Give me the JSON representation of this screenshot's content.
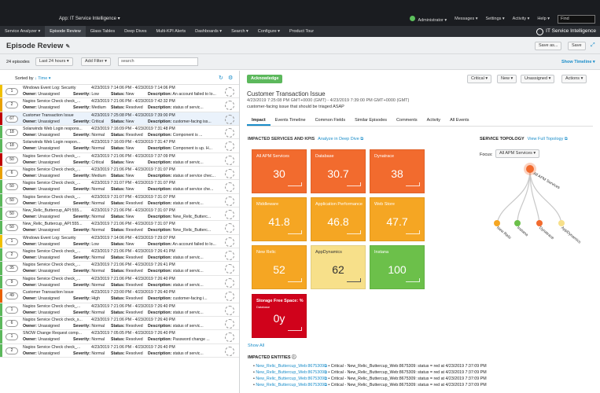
{
  "topbar": {
    "app": "App: IT Service Intelligence ▾",
    "user": "Administrator ▾",
    "messages": "Messages ▾",
    "settings": "Settings ▾",
    "activity": "Activity ▾",
    "help": "Help ▾",
    "find_placeholder": "Find"
  },
  "nav": {
    "items": [
      "Service Analyzer ▾",
      "Episode Review",
      "Glass Tables",
      "Deep Dives",
      "Multi-KPI Alerts",
      "Dashboards ▾",
      "Search ▾",
      "Configure ▾",
      "Product Tour"
    ],
    "brand": "IT Service Intelligence"
  },
  "page": {
    "title": "Episode Review",
    "save_as": "Save as...",
    "save": "Save"
  },
  "filters": {
    "count": "24 episodes",
    "time": "Last 24 hours ▾",
    "add_filter": "Add Filter ▾",
    "search": "search",
    "show_timeline": "Show Timeline ▾"
  },
  "list": {
    "sorted_by": "Sorted by ",
    "sort_field": "↓ Time ▾",
    "labels": {
      "owner": "Owner:",
      "severity": "Severity:",
      "status": "Status:",
      "description": "Description:"
    },
    "rows": [
      {
        "count": "1",
        "title": "Windows Event Log: Security",
        "time": "4/23/2019 7:14:06 PM - 4/23/2019 7:14:06 PM",
        "owner": "Unassigned",
        "severity": "Low",
        "status": "New",
        "desc": "An account failed to lo...",
        "color": "#f0c000"
      },
      {
        "count": "2",
        "title": "Nagios Service Check check_...",
        "time": "4/23/2019 7:21:06 PM - 4/23/2019 7:42:32 PM",
        "owner": "Unassigned",
        "severity": "Medium",
        "status": "Resolved",
        "desc": "status of servic...",
        "color": "#e8a000"
      },
      {
        "count": "67",
        "title": "Customer Transaction Issue",
        "time": "4/23/2019 7:25:08 PM - 4/23/2019 7:39:00 PM",
        "owner": "Unassigned",
        "severity": "Critical",
        "status": "New",
        "desc": "customer-facing iss...",
        "color": "#c00000",
        "selected": true
      },
      {
        "count": "18",
        "title": "Solarwinds Web Login respons...",
        "time": "4/23/2019 7:16:09 PM - 4/23/2019 7:31:48 PM",
        "owner": "Unassigned",
        "severity": "Normal",
        "status": "Resolved",
        "desc": "Component is ...",
        "color": "#5cb85c"
      },
      {
        "count": "18",
        "title": "Solarwinds Web Login respon...",
        "time": "4/23/2019 7:16:09 PM - 4/23/2019 7:31:47 PM",
        "owner": "Unassigned",
        "severity": "Normal",
        "status": "New",
        "desc": "Component is up. H...",
        "color": "#5cb85c"
      },
      {
        "count": "50",
        "title": "Nagios Service Check check_...",
        "time": "4/23/2019 7:21:06 PM - 4/23/2019 7:37:09 PM",
        "owner": "Unassigned",
        "severity": "Critical",
        "status": "New",
        "desc": "status of servic...",
        "color": "#c00000"
      },
      {
        "count": "6",
        "title": "Nagios Service Check check_...",
        "time": "4/23/2019 7:21:06 PM - 4/23/2019 7:31:07 PM",
        "owner": "Unassigned",
        "severity": "Medium",
        "status": "New",
        "desc": "status of service chec...",
        "color": "#e8a000"
      },
      {
        "count": "50",
        "title": "Nagios Service Check check_...",
        "time": "4/23/2019 7:31:07 PM - 4/23/2019 7:31:07 PM",
        "owner": "Unassigned",
        "severity": "Normal",
        "status": "New",
        "desc": "status of service che...",
        "color": "#5cb85c"
      },
      {
        "count": "50",
        "title": "Nagios Service Check check_...",
        "time": "4/23/2019 7:31:07 PM - 4/23/2019 7:31:07 PM",
        "owner": "Unassigned",
        "severity": "Normal",
        "status": "Resolved",
        "desc": "status of servic...",
        "color": "#5cb85c"
      },
      {
        "count": "50",
        "title": "New_Relic_Buttercup_API:555...",
        "time": "4/23/2019 7:21:06 PM - 4/23/2019 7:31:07 PM",
        "owner": "Unassigned",
        "severity": "Normal",
        "status": "New",
        "desc": "New_Relic_Butterc...",
        "color": "#5cb85c"
      },
      {
        "count": "50",
        "title": "New_Relic_Buttercup_API:555...",
        "time": "4/23/2019 7:21:06 PM - 4/23/2019 7:31:07 PM",
        "owner": "Unassigned",
        "severity": "Normal",
        "status": "Resolved",
        "desc": "New_Relic_Butterc...",
        "color": "#5cb85c"
      },
      {
        "count": "1",
        "title": "Windows Event Log: Security",
        "time": "4/23/2019 7:14:06 PM - 4/23/2019 7:29:07 PM",
        "owner": "Unassigned",
        "severity": "Low",
        "status": "New",
        "desc": "An account failed to lo...",
        "color": "#f0c000"
      },
      {
        "count": "2",
        "title": "Nagios Service Check check_...",
        "time": "4/23/2019 7:21:06 PM - 4/23/2019 7:26:41 PM",
        "owner": "Unassigned",
        "severity": "Normal",
        "status": "Resolved",
        "desc": "status of servic...",
        "color": "#5cb85c"
      },
      {
        "count": "35",
        "title": "Nagios Service Check check_...",
        "time": "4/23/2019 7:21:06 PM - 4/23/2019 7:26:41 PM",
        "owner": "Unassigned",
        "severity": "Normal",
        "status": "Resolved",
        "desc": "status of servic...",
        "color": "#5cb85c"
      },
      {
        "count": "9",
        "title": "Nagios Service Check check_...",
        "time": "4/23/2019 7:21:06 PM - 4/23/2019 7:26:40 PM",
        "owner": "Unassigned",
        "severity": "Normal",
        "status": "Resolved",
        "desc": "status of servic...",
        "color": "#5cb85c"
      },
      {
        "count": "49",
        "title": "Customer Transaction Issue",
        "time": "4/23/2019 7:23:00 PM - 4/23/2019 7:26:40 PM",
        "owner": "Unassigned",
        "severity": "High",
        "status": "Resolved",
        "desc": "customer-facing i...",
        "color": "#e86000"
      },
      {
        "count": "1",
        "title": "Nagios Service Check check_...",
        "time": "4/23/2019 7:21:06 PM - 4/23/2019 7:26:40 PM",
        "owner": "Unassigned",
        "severity": "Normal",
        "status": "Resolved",
        "desc": "status of servic...",
        "color": "#5cb85c"
      },
      {
        "count": "6",
        "title": "Nagios Service Check check_s...",
        "time": "4/23/2019 7:21:06 PM - 4/23/2019 7:26:40 PM",
        "owner": "Unassigned",
        "severity": "Normal",
        "status": "Resolved",
        "desc": "status of servic...",
        "color": "#5cb85c"
      },
      {
        "count": "1",
        "title": "SNOW Change Request comp...",
        "time": "4/23/2019 7:05:05 PM - 4/23/2019 7:26:40 PM",
        "owner": "Unassigned",
        "severity": "Normal",
        "status": "Resolved",
        "desc": "Password change ...",
        "color": "#5cb85c"
      },
      {
        "count": "2",
        "title": "Nagios Service Check check_...",
        "time": "4/23/2019 7:21:06 PM - 4/23/2019 7:26:40 PM",
        "owner": "Unassigned",
        "severity": "Normal",
        "status": "Resolved",
        "desc": "status of servic...",
        "color": "#5cb85c"
      }
    ]
  },
  "detail": {
    "acknowledge": "Acknowledge",
    "sev_btn": "Critical ▾",
    "status_btn": "New ▾",
    "owner_btn": "Unassigned ▾",
    "actions_btn": "Actions ▾",
    "title": "Customer Transaction Issue",
    "timerange": "4/23/2019 7:25:08 PM GMT+0000 (GMT) - 4/23/2019 7:39:00 PM GMT+0000 (GMT)",
    "description": "customer-facing issue that should be triaged ASAP",
    "tabs": [
      "Impact",
      "Events Timeline",
      "Common Fields",
      "Similar Episodes",
      "Comments",
      "Activity",
      "All Events"
    ],
    "impacted_head": "IMPACTED SERVICES AND KPIS",
    "analyze_link": "Analyze in Deep Dive ⧉",
    "tiles": [
      {
        "name": "All APM Services",
        "value": "30",
        "color": "#f26b2e"
      },
      {
        "name": "Database",
        "value": "30.7",
        "color": "#f26b2e"
      },
      {
        "name": "Dynatrace",
        "value": "38",
        "color": "#f26b2e"
      },
      {
        "name": "Middleware",
        "value": "41.8",
        "color": "#f5a623"
      },
      {
        "name": "Application Performance",
        "value": "46.8",
        "color": "#f5a623"
      },
      {
        "name": "Web Store",
        "value": "47.7",
        "color": "#f5a623"
      },
      {
        "name": "New Relic",
        "value": "52",
        "color": "#f5a623"
      },
      {
        "name": "AppDynamics",
        "value": "62",
        "color": "#f7e08a"
      },
      {
        "name": "Instana",
        "value": "100",
        "color": "#6cc04a"
      }
    ],
    "storage": {
      "name": "Storage Free Space: %",
      "sub": "Database",
      "value": "0y",
      "color": "#d0021b"
    },
    "show_all": "Show All",
    "entities_head": "IMPACTED ENTITIES",
    "entities": [
      {
        "link": "New_Relic_Buttercup_Web:8675309⧉",
        "text": " • Critical - New_Relic_Buttercup_Web:8675309: status = red at 4/23/2019 7:37:09 PM"
      },
      {
        "link": "New_Relic_Buttercup_Web:8675309⧉",
        "text": " • Critical - New_Relic_Buttercup_Web:8675309: status = red at 4/23/2019 7:37:09 PM"
      },
      {
        "link": "New_Relic_Buttercup_Web:8675309⧉",
        "text": " • Critical - New_Relic_Buttercup_Web:8675309: status = red at 4/23/2019 7:37:09 PM"
      },
      {
        "link": "New_Relic_Buttercup_Web:8675309⧉",
        "text": " • Critical - New_Relic_Buttercup_Web:8675309: status = red at 4/23/2019 7:37:09 PM"
      }
    ],
    "topology_head": "SERVICE TOPOLOGY",
    "topology_link": "View Full Topology ⧉",
    "focus_label": "Focus:",
    "focus_value": "All APM Services ▾",
    "topo_nodes": [
      "All APM Services",
      "New Relic",
      "Instana",
      "Dynatrace",
      "AppDynamics"
    ]
  }
}
